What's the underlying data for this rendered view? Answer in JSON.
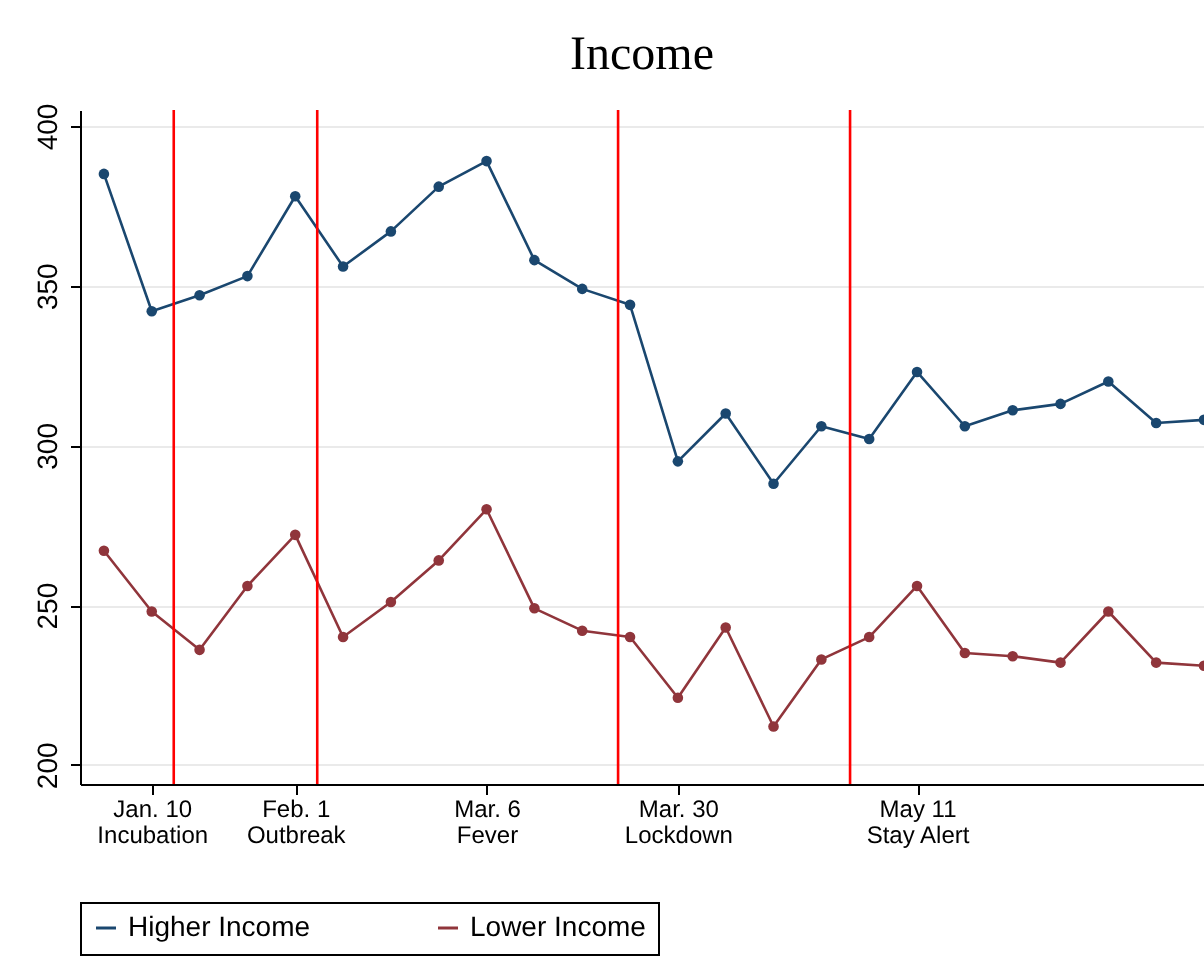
{
  "chart_data": {
    "type": "line",
    "title": "Income",
    "categories": [
      null,
      "Jan. 10\nIncubation",
      null,
      null,
      "Feb. 1\nOutbreak",
      null,
      null,
      null,
      "Mar. 6\nFever",
      null,
      null,
      null,
      "Mar. 30\nLockdown",
      null,
      null,
      null,
      null,
      "May 11\nStay Alert",
      null,
      null,
      null,
      null,
      null,
      null
    ],
    "ylim": [
      194,
      405
    ],
    "yticks": [
      200,
      250,
      300,
      350,
      400
    ],
    "series": [
      {
        "name": "Higher Income",
        "color": "#1a476f",
        "values": [
          385,
          342,
          347,
          353,
          378,
          356,
          367,
          381,
          389,
          358,
          349,
          344,
          295,
          310,
          288,
          306,
          302,
          323,
          306,
          311,
          313,
          320,
          307,
          308
        ]
      },
      {
        "name": "Lower Income",
        "color": "#90353b",
        "values": [
          267,
          248,
          236,
          256,
          272,
          240,
          251,
          264,
          280,
          249,
          242,
          240,
          221,
          243,
          212,
          233,
          240,
          256,
          235,
          234,
          232,
          248,
          232,
          231
        ]
      }
    ],
    "grid": "y",
    "legend": "bottom",
    "marker": "circle",
    "line_style": "solid"
  }
}
